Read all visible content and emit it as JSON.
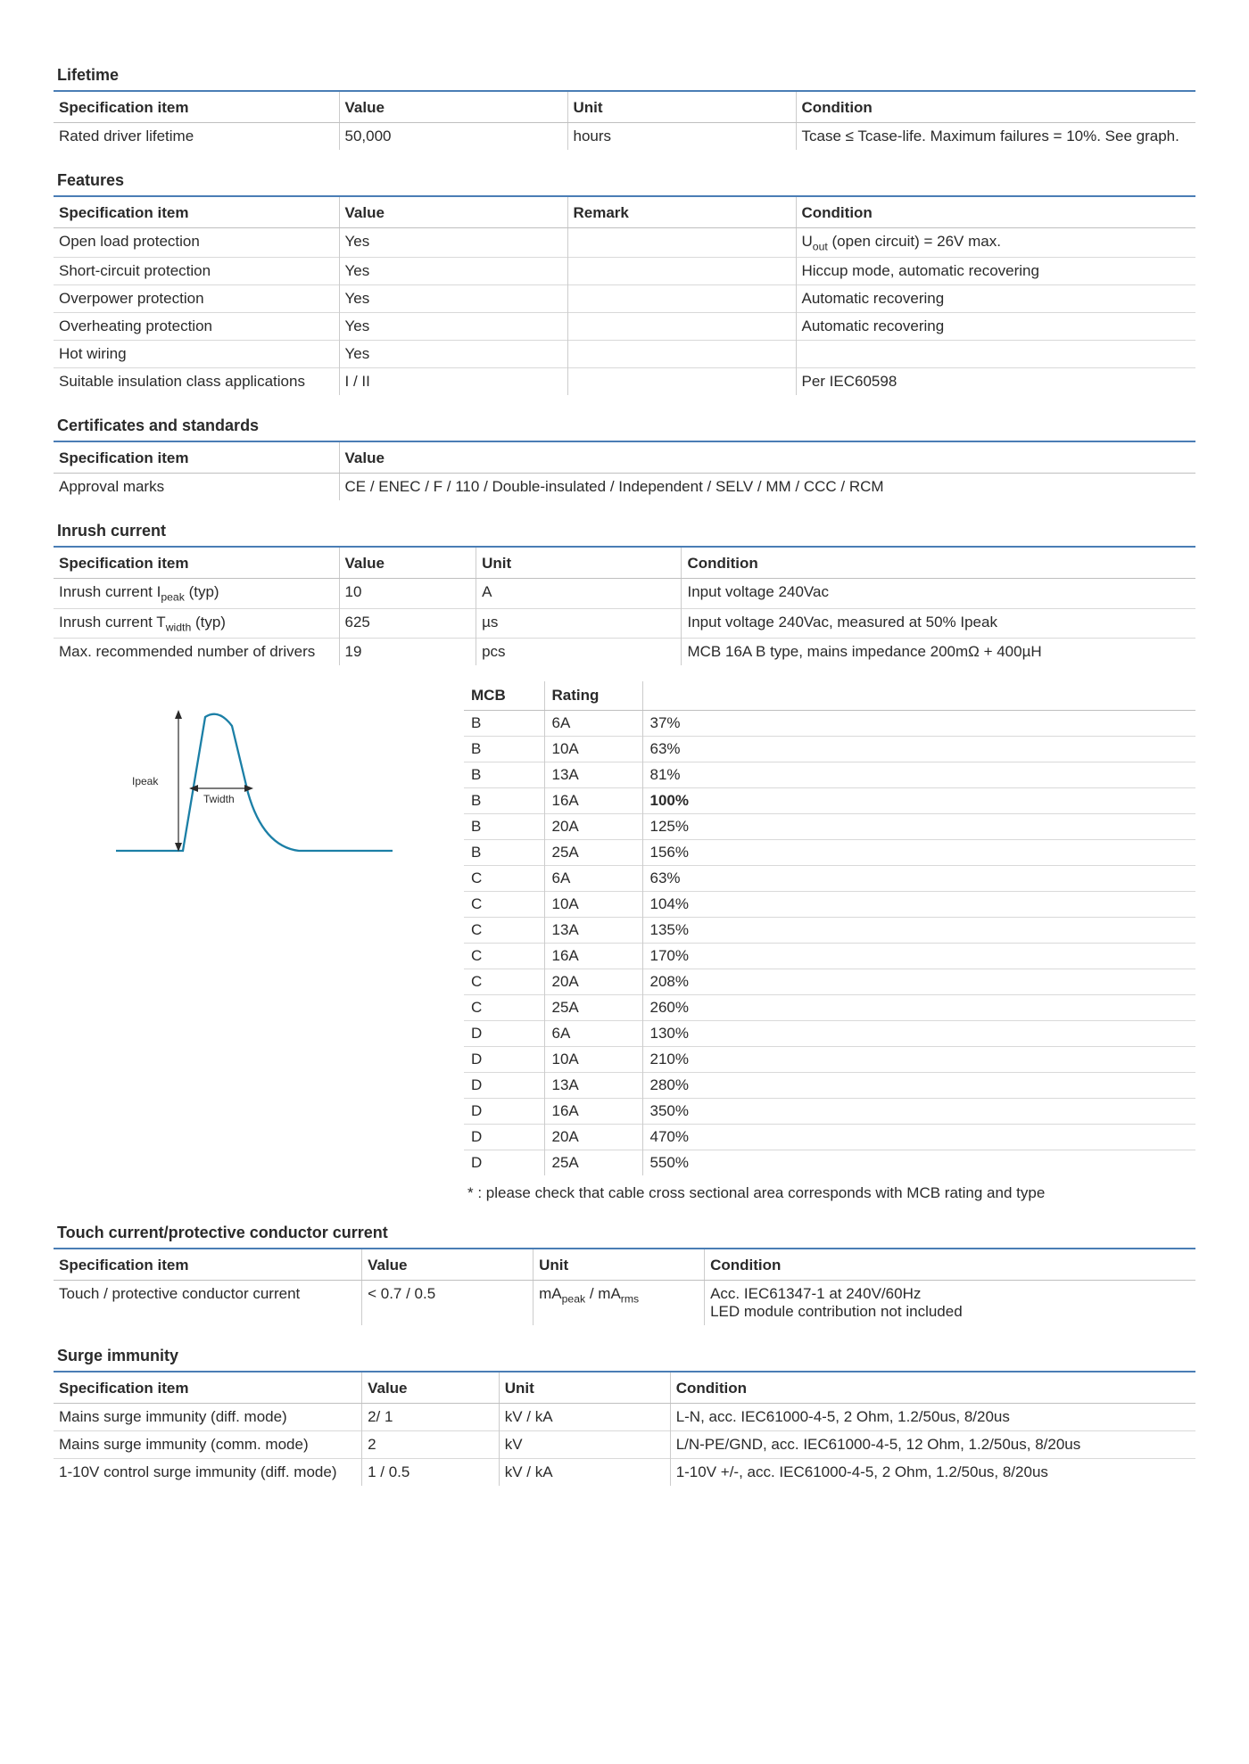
{
  "lifetime": {
    "title": "Lifetime",
    "headers": [
      "Specification item",
      "Value",
      "Unit",
      "Condition"
    ],
    "col_widths": [
      "25%",
      "20%",
      "20%",
      "35%"
    ],
    "rows": [
      [
        "Rated driver lifetime",
        "50,000",
        "hours",
        "Tcase ≤ Tcase-life. Maximum  failures = 10%. See graph."
      ]
    ]
  },
  "features": {
    "title": "Features",
    "headers": [
      "Specification item",
      "Value",
      "Remark",
      "Condition"
    ],
    "col_widths": [
      "25%",
      "20%",
      "20%",
      "35%"
    ],
    "rows": [
      [
        "Open load protection",
        "Yes",
        "",
        "U<sub>out</sub> (open circuit) = 26V max."
      ],
      [
        "Short-circuit protection",
        "Yes",
        "",
        "Hiccup mode, automatic recovering"
      ],
      [
        "Overpower protection",
        "Yes",
        "",
        "Automatic recovering"
      ],
      [
        "Overheating protection",
        "Yes",
        "",
        "Automatic recovering"
      ],
      [
        "Hot wiring",
        "Yes",
        "",
        ""
      ],
      [
        "Suitable insulation class applications",
        "I / II",
        "",
        "Per IEC60598"
      ]
    ]
  },
  "certs": {
    "title": "Certificates and standards",
    "headers": [
      "Specification item",
      "Value"
    ],
    "col_widths": [
      "25%",
      "75%"
    ],
    "rows": [
      [
        "Approval marks",
        "CE / ENEC / F / 110 / Double-insulated / Independent / SELV / MM / CCC / RCM"
      ]
    ]
  },
  "inrush": {
    "title": "Inrush current",
    "headers": [
      "Specification item",
      "Value",
      "Unit",
      "Condition"
    ],
    "col_widths": [
      "25%",
      "12%",
      "18%",
      "45%"
    ],
    "rows": [
      [
        "Inrush current I<sub>peak</sub> (typ)",
        "10",
        "A",
        "Input voltage 240Vac"
      ],
      [
        "Inrush current T<sub>width</sub> (typ)",
        "625",
        "µs",
        "Input voltage 240Vac, measured at 50% Ipeak"
      ],
      [
        "Max. recommended number of drivers",
        "19",
        "pcs",
        "MCB 16A B type, mains impedance 200mΩ + 400µH"
      ]
    ],
    "graph": {
      "stroke": "#1b7fa6",
      "stroke_width": 2.3,
      "arrow_stroke": "#2a2a2a",
      "label_ipeak": "Ipeak",
      "label_twidth": "Twidth",
      "label_font_size": 12
    },
    "mcb_headers": [
      "MCB",
      "Rating",
      ""
    ],
    "mcb_col_widths": [
      "90px",
      "110px",
      "auto"
    ],
    "mcb_rows": [
      [
        "B",
        "6A",
        "37%"
      ],
      [
        "B",
        "10A",
        "63%"
      ],
      [
        "B",
        "13A",
        "81%"
      ],
      [
        "B",
        "16A",
        "<b>100%</b>"
      ],
      [
        "B",
        "20A",
        "125%"
      ],
      [
        "B",
        "25A",
        "156%"
      ],
      [
        "C",
        "6A",
        "63%"
      ],
      [
        "C",
        "10A",
        "104%"
      ],
      [
        "C",
        "13A",
        "135%"
      ],
      [
        "C",
        "16A",
        "170%"
      ],
      [
        "C",
        "20A",
        "208%"
      ],
      [
        "C",
        "25A",
        "260%"
      ],
      [
        "D",
        "6A",
        "130%"
      ],
      [
        "D",
        "10A",
        "210%"
      ],
      [
        "D",
        "13A",
        "280%"
      ],
      [
        "D",
        "16A",
        "350%"
      ],
      [
        "D",
        "20A",
        "470%"
      ],
      [
        "D",
        "25A",
        "550%"
      ]
    ],
    "footnote": "*  : please check that cable cross sectional area corresponds with MCB rating and type"
  },
  "touch": {
    "title": "Touch current/protective conductor current",
    "headers": [
      "Specification item",
      "Value",
      "Unit",
      "Condition"
    ],
    "col_widths": [
      "27%",
      "15%",
      "15%",
      "43%"
    ],
    "rows": [
      [
        "Touch / protective conductor current",
        "< 0.7 / 0.5",
        "mA<sub>peak</sub> / mA<sub>rms</sub>",
        "Acc. IEC61347-1 at 240V/60Hz<br>LED module contribution not included"
      ]
    ]
  },
  "surge": {
    "title": "Surge immunity",
    "headers": [
      "Specification item",
      "Value",
      "Unit",
      "Condition"
    ],
    "col_widths": [
      "27%",
      "12%",
      "15%",
      "46%"
    ],
    "rows": [
      [
        "Mains surge immunity (diff. mode)",
        "2/ 1",
        "kV / kA",
        "L-N, acc. IEC61000-4-5, 2 Ohm, 1.2/50us, 8/20us"
      ],
      [
        "Mains surge immunity (comm. mode)",
        "2",
        "kV",
        "L/N-PE/GND, acc. IEC61000-4-5, 12 Ohm, 1.2/50us, 8/20us"
      ],
      [
        "1-10V control surge immunity (diff. mode)",
        "1 / 0.5",
        "kV / kA",
        "1-10V +/-, acc. IEC61000-4-5, 2 Ohm, 1.2/50us, 8/20us"
      ]
    ]
  }
}
